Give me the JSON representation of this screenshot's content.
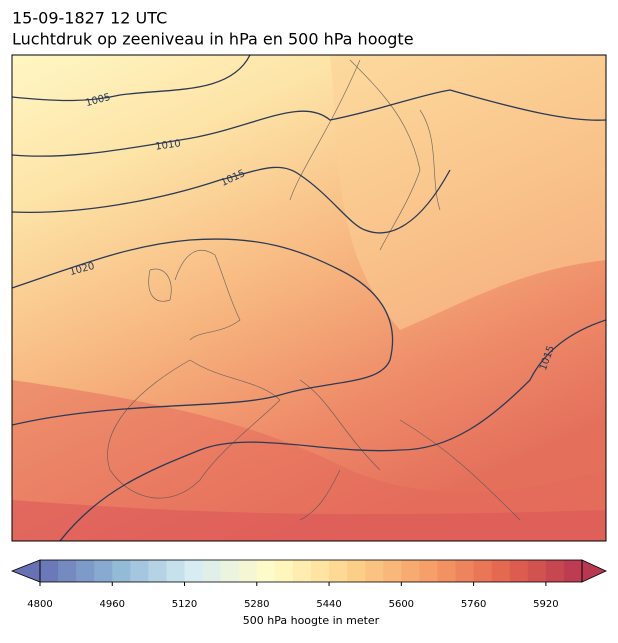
{
  "header": {
    "date": "15-09-1827 12 UTC",
    "title": "Luchtdruk op zeeniveau in hPa en 500 hPa hoogte"
  },
  "isobar_labels": [
    1005,
    1010,
    1015,
    1020,
    1015
  ],
  "colorbar": {
    "range": [
      4800,
      6000
    ],
    "step": 40,
    "ticks": [
      4800,
      4960,
      5120,
      5280,
      5440,
      5600,
      5760,
      5920
    ],
    "label": "500 hPa hoogte in meter",
    "extend": "both",
    "colors": [
      "#6771b4",
      "#8fb7d6",
      "#d8edf3",
      "#fffcc6",
      "#fdd38c",
      "#f6a06a",
      "#e4664f",
      "#b83751"
    ]
  }
}
